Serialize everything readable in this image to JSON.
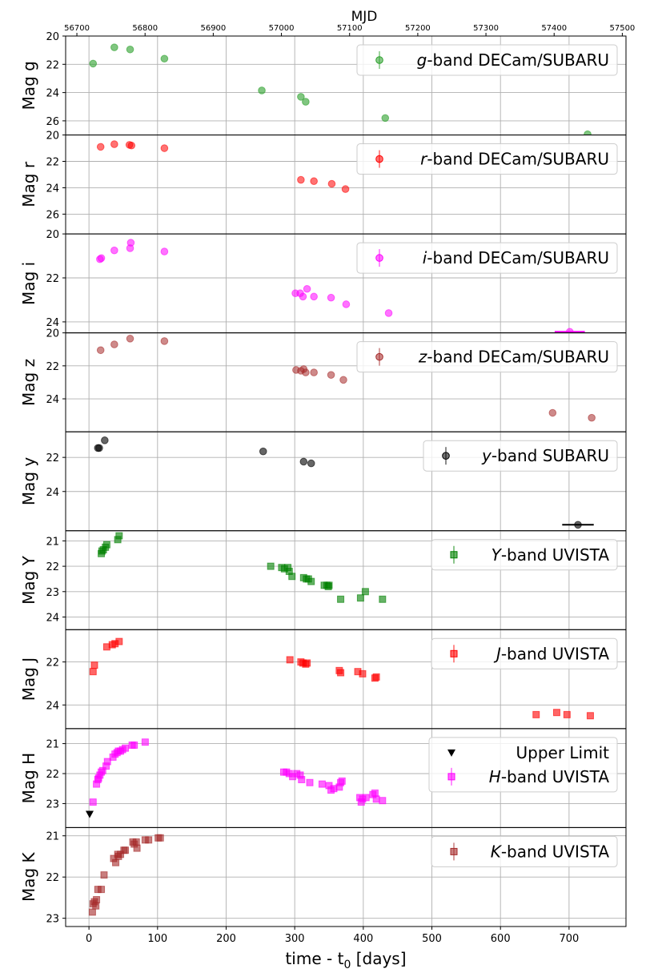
{
  "top_axis": {
    "label": "MJD",
    "range": [
      56683.5,
      57505.4
    ],
    "ticks": [
      56700,
      56800,
      56900,
      57000,
      57100,
      57200,
      57300,
      57400,
      57500
    ]
  },
  "x_axis": {
    "label": "time - t",
    "label_sub": "0",
    "label_unit": " [days]",
    "range": [
      -34,
      783
    ],
    "ticks": [
      0,
      100,
      200,
      300,
      400,
      500,
      600,
      700
    ]
  },
  "chart_data": [
    {
      "type": "scatter",
      "ylabel": "Mag g",
      "ylim": [
        27.0,
        20.0
      ],
      "yticks": [
        20,
        22,
        24,
        26
      ],
      "legend": [
        {
          "band": "g",
          "suffix": "-band DECam/SUBARU",
          "marker": "circle",
          "color": "#2ca02c"
        }
      ],
      "series": [
        {
          "name": "g-band DECam/SUBARU",
          "marker": "circle",
          "color": "#2ca02c",
          "alpha": 0.6,
          "points": [
            [
              6,
              21.95
            ],
            [
              37,
              20.8
            ],
            [
              60,
              20.95
            ],
            [
              110,
              21.6
            ],
            [
              252,
              23.85
            ],
            [
              309,
              24.3
            ],
            [
              316,
              24.65
            ],
            [
              432,
              25.8
            ],
            [
              727,
              26.95
            ]
          ]
        }
      ]
    },
    {
      "type": "scatter",
      "ylabel": "Mag r",
      "ylim": [
        27.5,
        20.0
      ],
      "yticks": [
        20,
        22,
        24,
        26
      ],
      "legend": [
        {
          "band": "r",
          "suffix": "-band DECam/SUBARU",
          "marker": "circle",
          "color": "#ff0000"
        }
      ],
      "series": [
        {
          "name": "r-band DECam/SUBARU",
          "marker": "circle",
          "color": "#ff0000",
          "alpha": 0.55,
          "points": [
            [
              17,
              20.9
            ],
            [
              37,
              20.7
            ],
            [
              59,
              20.75
            ],
            [
              62,
              20.8
            ],
            [
              110,
              21.0
            ],
            [
              309,
              23.4
            ],
            [
              328,
              23.5
            ],
            [
              354,
              23.7
            ],
            [
              374,
              24.1
            ]
          ]
        }
      ]
    },
    {
      "type": "scatter",
      "ylabel": "Mag i",
      "ylim": [
        24.5,
        20.0
      ],
      "yticks": [
        20,
        22,
        24
      ],
      "legend": [
        {
          "band": "i",
          "suffix": "-band DECam/SUBARU",
          "marker": "circle",
          "color": "#ff00ff"
        }
      ],
      "series": [
        {
          "name": "i-band DECam/SUBARU",
          "marker": "circle",
          "color": "#ff00ff",
          "alpha": 0.55,
          "points": [
            [
              16,
              21.15
            ],
            [
              18,
              21.1
            ],
            [
              37,
              20.75
            ],
            [
              60,
              20.65
            ],
            [
              61,
              20.4
            ],
            [
              110,
              20.8
            ],
            [
              301,
              22.7
            ],
            [
              308,
              22.7
            ],
            [
              312,
              22.85
            ],
            [
              318,
              22.5
            ],
            [
              328,
              22.85
            ],
            [
              353,
              22.9
            ],
            [
              375,
              23.2
            ],
            [
              437,
              23.6
            ],
            [
              701,
              24.45
            ]
          ]
        },
        {
          "name": "i-band errorbar",
          "marker": "errorbar",
          "color": "#ff00ff",
          "x": 701,
          "y": 24.45,
          "xerr": 22
        }
      ]
    },
    {
      "type": "scatter",
      "ylabel": "Mag z",
      "ylim": [
        26.0,
        20.0
      ],
      "yticks": [
        20,
        22,
        24
      ],
      "legend": [
        {
          "band": "z",
          "suffix": "-band DECam/SUBARU",
          "marker": "circle",
          "color": "#a52a2a"
        }
      ],
      "series": [
        {
          "name": "z-band DECam/SUBARU",
          "marker": "circle",
          "color": "#a52a2a",
          "alpha": 0.55,
          "points": [
            [
              17,
              21.05
            ],
            [
              37,
              20.7
            ],
            [
              60,
              20.35
            ],
            [
              110,
              20.5
            ],
            [
              302,
              22.25
            ],
            [
              309,
              22.3
            ],
            [
              313,
              22.2
            ],
            [
              316,
              22.4
            ],
            [
              328,
              22.4
            ],
            [
              353,
              22.55
            ],
            [
              371,
              22.85
            ],
            [
              676,
              24.85
            ],
            [
              733,
              25.15
            ]
          ]
        }
      ]
    },
    {
      "type": "scatter",
      "ylabel": "Mag y",
      "ylim": [
        26.3,
        20.5
      ],
      "yticks": [
        22,
        24
      ],
      "legend": [
        {
          "band": "y",
          "suffix": "-band SUBARU",
          "marker": "circle",
          "color": "#000000"
        }
      ],
      "series": [
        {
          "name": "y-band SUBARU",
          "marker": "circle",
          "color": "#000000",
          "alpha": 0.6,
          "points": [
            [
              13,
              21.45
            ],
            [
              15,
              21.45
            ],
            [
              23,
              21.0
            ],
            [
              254,
              21.65
            ],
            [
              313,
              22.25
            ],
            [
              324,
              22.35
            ],
            [
              713,
              25.95
            ]
          ]
        },
        {
          "name": "y-band errorbar",
          "marker": "errorbar",
          "color": "#000000",
          "x": 713,
          "y": 25.95,
          "xerr": 23
        }
      ]
    },
    {
      "type": "scatter",
      "ylabel": "Mag Y",
      "ylim": [
        24.5,
        20.6
      ],
      "yticks": [
        21,
        22,
        23,
        24
      ],
      "legend": [
        {
          "band": "Y",
          "suffix": "-band UVISTA",
          "marker": "square",
          "color": "#008000"
        }
      ],
      "series": [
        {
          "name": "Y-band UVISTA",
          "marker": "square",
          "color": "#008000",
          "alpha": 0.6,
          "points": [
            [
              18,
              21.5
            ],
            [
              19,
              21.4
            ],
            [
              21,
              21.35
            ],
            [
              24,
              21.25
            ],
            [
              26,
              21.15
            ],
            [
              42,
              20.95
            ],
            [
              44,
              20.8
            ],
            [
              265,
              22.0
            ],
            [
              281,
              22.05
            ],
            [
              285,
              22.1
            ],
            [
              290,
              22.05
            ],
            [
              292,
              22.2
            ],
            [
              296,
              22.4
            ],
            [
              313,
              22.45
            ],
            [
              317,
              22.5
            ],
            [
              320,
              22.5
            ],
            [
              324,
              22.6
            ],
            [
              343,
              22.75
            ],
            [
              347,
              22.75
            ],
            [
              349,
              22.8
            ],
            [
              350,
              22.75
            ],
            [
              367,
              23.3
            ],
            [
              396,
              23.25
            ],
            [
              403,
              23.0
            ],
            [
              428,
              23.3
            ]
          ]
        }
      ]
    },
    {
      "type": "scatter",
      "ylabel": "Mag J",
      "ylim": [
        25.1,
        20.5
      ],
      "yticks": [
        22,
        24
      ],
      "legend": [
        {
          "band": "J",
          "suffix": "-band UVISTA",
          "marker": "square",
          "color": "#ff0000"
        }
      ],
      "series": [
        {
          "name": "J-band UVISTA",
          "marker": "square",
          "color": "#ff0000",
          "alpha": 0.6,
          "points": [
            [
              6,
              22.45
            ],
            [
              8,
              22.15
            ],
            [
              26,
              21.3
            ],
            [
              34,
              21.2
            ],
            [
              38,
              21.15
            ],
            [
              44,
              21.05
            ],
            [
              293,
              21.9
            ],
            [
              309,
              22.0
            ],
            [
              312,
              22.05
            ],
            [
              316,
              22.1
            ],
            [
              318,
              22.05
            ],
            [
              365,
              22.4
            ],
            [
              367,
              22.5
            ],
            [
              392,
              22.45
            ],
            [
              399,
              22.55
            ],
            [
              417,
              22.75
            ],
            [
              419,
              22.7
            ],
            [
              652,
              24.45
            ],
            [
              682,
              24.35
            ],
            [
              697,
              24.45
            ],
            [
              731,
              24.5
            ]
          ]
        }
      ]
    },
    {
      "type": "scatter",
      "ylabel": "Mag H",
      "ylim": [
        23.8,
        20.5
      ],
      "yticks": [
        21,
        22,
        23
      ],
      "legend": [
        {
          "label": "Upper Limit",
          "marker": "triangle-down",
          "color": "#000000"
        },
        {
          "band": "H",
          "suffix": "-band UVISTA",
          "marker": "square",
          "color": "#ff00ff"
        }
      ],
      "series": [
        {
          "name": "Upper Limit",
          "marker": "triangle-down",
          "color": "#000000",
          "alpha": 1.0,
          "points": [
            [
              1,
              23.35
            ]
          ]
        },
        {
          "name": "H-band UVISTA",
          "marker": "square",
          "color": "#ff00ff",
          "alpha": 0.6,
          "points": [
            [
              6,
              22.95
            ],
            [
              11,
              22.35
            ],
            [
              13,
              22.2
            ],
            [
              14,
              22.15
            ],
            [
              16,
              22.05
            ],
            [
              18,
              21.95
            ],
            [
              20,
              21.9
            ],
            [
              25,
              21.75
            ],
            [
              27,
              21.6
            ],
            [
              35,
              21.45
            ],
            [
              38,
              21.35
            ],
            [
              41,
              21.3
            ],
            [
              43,
              21.25
            ],
            [
              46,
              21.25
            ],
            [
              49,
              21.2
            ],
            [
              53,
              21.15
            ],
            [
              63,
              21.05
            ],
            [
              66,
              21.05
            ],
            [
              82,
              20.95
            ],
            [
              284,
              21.95
            ],
            [
              288,
              21.95
            ],
            [
              292,
              22.0
            ],
            [
              297,
              22.1
            ],
            [
              303,
              22.0
            ],
            [
              308,
              22.05
            ],
            [
              310,
              22.2
            ],
            [
              322,
              22.3
            ],
            [
              340,
              22.35
            ],
            [
              350,
              22.4
            ],
            [
              353,
              22.55
            ],
            [
              357,
              22.5
            ],
            [
              365,
              22.45
            ],
            [
              367,
              22.3
            ],
            [
              369,
              22.25
            ],
            [
              395,
              22.8
            ],
            [
              397,
              22.95
            ],
            [
              399,
              22.85
            ],
            [
              404,
              22.8
            ],
            [
              414,
              22.7
            ],
            [
              417,
              22.65
            ],
            [
              419,
              22.85
            ],
            [
              428,
              22.9
            ]
          ]
        }
      ]
    },
    {
      "type": "scatter",
      "ylabel": "Mag K",
      "ylim": [
        23.2,
        20.8
      ],
      "yticks": [
        21,
        22,
        23
      ],
      "legend": [
        {
          "band": "K",
          "suffix": "-band UVISTA",
          "marker": "square",
          "color": "#a52a2a"
        }
      ],
      "series": [
        {
          "name": "K-band UVISTA",
          "marker": "square",
          "color": "#a52a2a",
          "alpha": 0.6,
          "points": [
            [
              5,
              22.85
            ],
            [
              6,
              22.65
            ],
            [
              8,
              22.6
            ],
            [
              10,
              22.7
            ],
            [
              11,
              22.55
            ],
            [
              13,
              22.3
            ],
            [
              18,
              22.3
            ],
            [
              22,
              21.95
            ],
            [
              36,
              21.55
            ],
            [
              39,
              21.65
            ],
            [
              42,
              21.45
            ],
            [
              43,
              21.5
            ],
            [
              46,
              21.45
            ],
            [
              51,
              21.35
            ],
            [
              53,
              21.35
            ],
            [
              64,
              21.15
            ],
            [
              66,
              21.2
            ],
            [
              69,
              21.15
            ],
            [
              70,
              21.3
            ],
            [
              82,
              21.1
            ],
            [
              87,
              21.1
            ],
            [
              101,
              21.05
            ],
            [
              104,
              21.05
            ]
          ]
        }
      ]
    }
  ]
}
